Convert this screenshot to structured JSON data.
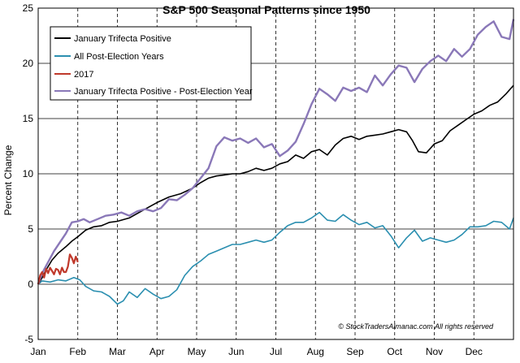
{
  "chart_data": {
    "type": "line",
    "title": "S&P 500 Seasonal Patterns since 1950",
    "xlabel": "",
    "ylabel": "Percent Change",
    "ylim": [
      -5,
      25
    ],
    "yticks": [
      -5,
      0,
      5,
      10,
      15,
      20,
      25
    ],
    "xlim": [
      0,
      12
    ],
    "categories": [
      "Jan",
      "Feb",
      "Mar",
      "Apr",
      "May",
      "Jun",
      "Jul",
      "Aug",
      "Sep",
      "Oct",
      "Nov",
      "Dec"
    ],
    "grid": {
      "horizontal": "solid",
      "vertical": "dashed"
    },
    "legend_position": "top-left",
    "copyright": "© StockTradersAlmanac.com All rights reserved",
    "series": [
      {
        "name": "January Trifecta Positive",
        "color": "#000000",
        "x": [
          0,
          0.1,
          0.2,
          0.35,
          0.5,
          0.7,
          0.85,
          1.0,
          1.2,
          1.4,
          1.6,
          1.8,
          2.0,
          2.3,
          2.6,
          3.0,
          3.3,
          3.6,
          3.9,
          4.1,
          4.3,
          4.5,
          4.7,
          4.9,
          5.1,
          5.3,
          5.5,
          5.7,
          5.9,
          6.1,
          6.3,
          6.5,
          6.7,
          6.9,
          7.1,
          7.3,
          7.5,
          7.7,
          7.9,
          8.1,
          8.3,
          8.5,
          8.7,
          8.9,
          9.1,
          9.3,
          9.45,
          9.6,
          9.8,
          10.0,
          10.2,
          10.4,
          10.6,
          10.8,
          11.0,
          11.2,
          11.4,
          11.6,
          11.8,
          12.0
        ],
        "values": [
          0.0,
          0.6,
          1.3,
          2.2,
          2.8,
          3.4,
          3.9,
          4.3,
          4.9,
          5.2,
          5.3,
          5.6,
          5.7,
          6.0,
          6.6,
          7.4,
          7.9,
          8.2,
          8.7,
          9.2,
          9.6,
          9.8,
          9.9,
          10.0,
          10.0,
          10.2,
          10.5,
          10.3,
          10.5,
          10.9,
          11.1,
          11.7,
          11.4,
          12.0,
          12.2,
          11.7,
          12.6,
          13.2,
          13.4,
          13.1,
          13.4,
          13.5,
          13.6,
          13.8,
          14.0,
          13.8,
          13.0,
          12.0,
          11.9,
          12.7,
          13.0,
          13.9,
          14.4,
          14.9,
          15.4,
          15.7,
          16.2,
          16.5,
          17.2,
          18.0
        ]
      },
      {
        "name": "All Post-Election Years",
        "color": "#2b8fb0",
        "x": [
          0,
          0.1,
          0.3,
          0.5,
          0.7,
          0.9,
          1.05,
          1.2,
          1.4,
          1.6,
          1.8,
          2.0,
          2.15,
          2.3,
          2.5,
          2.7,
          2.9,
          3.1,
          3.3,
          3.5,
          3.7,
          3.9,
          4.1,
          4.3,
          4.5,
          4.7,
          4.9,
          5.1,
          5.3,
          5.5,
          5.7,
          5.9,
          6.1,
          6.3,
          6.5,
          6.7,
          6.9,
          7.1,
          7.3,
          7.5,
          7.7,
          7.9,
          8.1,
          8.3,
          8.5,
          8.7,
          8.9,
          9.1,
          9.3,
          9.5,
          9.7,
          9.9,
          10.1,
          10.3,
          10.5,
          10.7,
          10.9,
          11.1,
          11.3,
          11.5,
          11.7,
          11.9,
          12.0
        ],
        "values": [
          0.0,
          0.3,
          0.2,
          0.4,
          0.3,
          0.6,
          0.4,
          -0.2,
          -0.6,
          -0.7,
          -1.1,
          -1.8,
          -1.5,
          -0.7,
          -1.2,
          -0.4,
          -0.9,
          -1.3,
          -1.1,
          -0.5,
          0.8,
          1.6,
          2.1,
          2.7,
          3.0,
          3.3,
          3.6,
          3.6,
          3.8,
          4.0,
          3.8,
          4.0,
          4.7,
          5.3,
          5.6,
          5.6,
          6.0,
          6.5,
          5.8,
          5.7,
          6.3,
          5.8,
          5.4,
          5.6,
          5.1,
          5.3,
          4.4,
          3.3,
          4.2,
          4.9,
          3.9,
          4.2,
          4.0,
          3.8,
          4.0,
          4.5,
          5.2,
          5.2,
          5.3,
          5.7,
          5.6,
          5.0,
          6.0
        ]
      },
      {
        "name": "2017",
        "color": "#c0392b",
        "x": [
          0,
          0.05,
          0.1,
          0.15,
          0.2,
          0.25,
          0.3,
          0.35,
          0.4,
          0.45,
          0.5,
          0.55,
          0.6,
          0.65,
          0.7,
          0.75,
          0.8,
          0.85,
          0.9,
          0.95,
          1.0
        ],
        "values": [
          0.0,
          0.8,
          1.1,
          0.6,
          1.4,
          1.0,
          1.5,
          1.2,
          0.9,
          1.4,
          1.3,
          0.9,
          1.5,
          1.1,
          1.1,
          1.6,
          2.7,
          2.4,
          1.9,
          2.5,
          2.0
        ]
      },
      {
        "name": "January Trifecta Positive - Post-Election Year",
        "color": "#8a78b8",
        "x": [
          0,
          0.1,
          0.25,
          0.4,
          0.55,
          0.7,
          0.85,
          1.0,
          1.15,
          1.3,
          1.5,
          1.7,
          1.9,
          2.1,
          2.3,
          2.5,
          2.7,
          2.9,
          3.1,
          3.3,
          3.5,
          3.7,
          3.9,
          4.1,
          4.3,
          4.5,
          4.7,
          4.9,
          5.1,
          5.3,
          5.5,
          5.7,
          5.9,
          6.1,
          6.3,
          6.5,
          6.7,
          6.9,
          7.1,
          7.3,
          7.5,
          7.7,
          7.9,
          8.1,
          8.3,
          8.5,
          8.7,
          8.9,
          9.1,
          9.3,
          9.5,
          9.7,
          9.9,
          10.1,
          10.3,
          10.5,
          10.7,
          10.9,
          11.1,
          11.3,
          11.5,
          11.7,
          11.9,
          12.0
        ],
        "values": [
          0.0,
          1.0,
          2.0,
          3.0,
          3.8,
          4.6,
          5.6,
          5.7,
          5.9,
          5.6,
          5.9,
          6.2,
          6.3,
          6.5,
          6.2,
          6.6,
          6.8,
          6.6,
          6.9,
          7.7,
          7.6,
          8.1,
          8.7,
          9.6,
          10.5,
          12.5,
          13.3,
          13.0,
          13.2,
          12.8,
          13.2,
          12.4,
          12.7,
          11.6,
          12.1,
          12.9,
          14.5,
          16.3,
          17.7,
          17.2,
          16.6,
          17.8,
          17.5,
          17.8,
          17.4,
          18.9,
          18.0,
          19.0,
          19.8,
          19.6,
          18.3,
          19.5,
          20.2,
          20.7,
          20.2,
          21.3,
          20.6,
          21.3,
          22.6,
          23.3,
          23.8,
          22.4,
          22.2,
          24.0
        ]
      }
    ]
  }
}
